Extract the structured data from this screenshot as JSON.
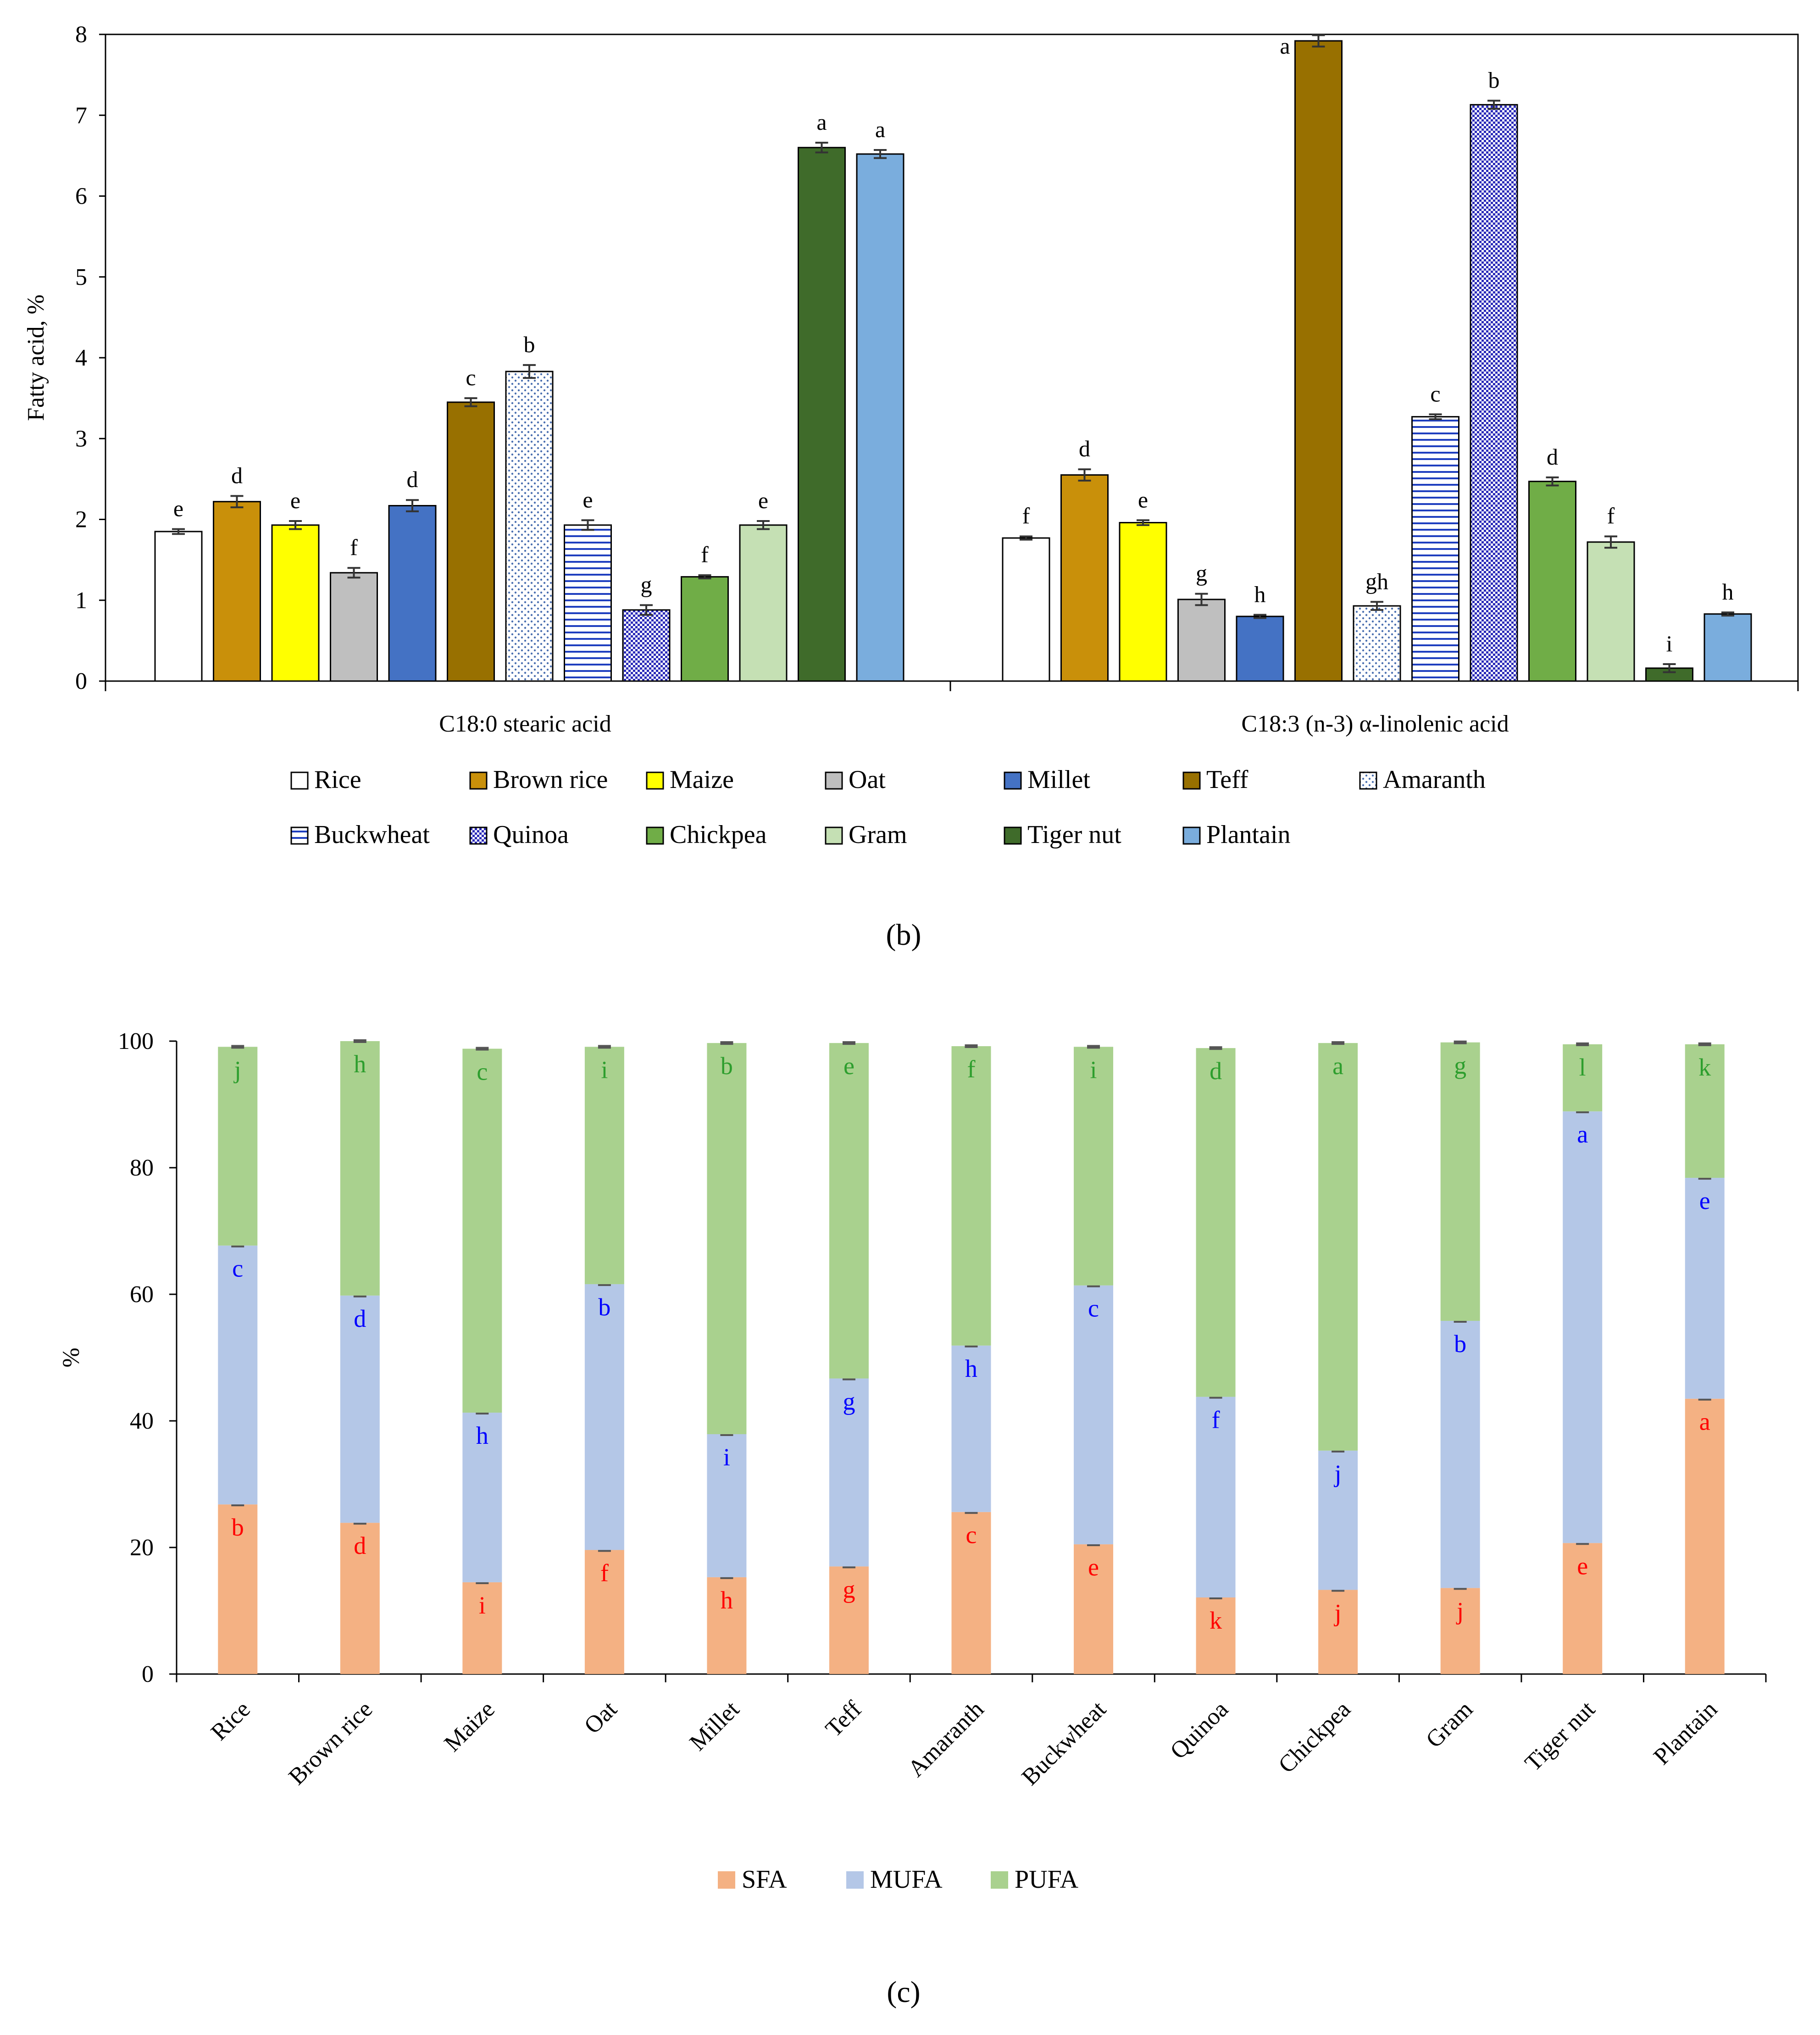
{
  "captions": {
    "b": "(b)",
    "c": "(c)"
  },
  "chart_data": [
    {
      "id": "b",
      "type": "bar",
      "title": "",
      "ylabel": "Fatty acid, %",
      "ylim": [
        0,
        8
      ],
      "yticks": [
        0,
        1,
        2,
        3,
        4,
        5,
        6,
        7,
        8
      ],
      "groups": [
        "C18:0 stearic acid",
        "C18:3 (n-3) α-linolenic acid"
      ],
      "legend_rows": [
        [
          "Rice",
          "Brown rice",
          "Maize",
          "Oat",
          "Millet",
          "Teff",
          "Amaranth"
        ],
        [
          "Buckwheat",
          "Quinoa",
          "Chickpea",
          "Gram",
          "Tiger nut",
          "Plantain"
        ]
      ],
      "series": [
        {
          "name": "Rice",
          "fill": "#ffffff",
          "pattern": "none",
          "values": [
            1.85,
            1.77
          ],
          "errors": [
            0.03,
            0.02
          ],
          "labels": [
            "e",
            "f"
          ]
        },
        {
          "name": "Brown rice",
          "fill": "#c9900a",
          "pattern": "none",
          "values": [
            2.22,
            2.55
          ],
          "errors": [
            0.07,
            0.07
          ],
          "labels": [
            "d",
            "d"
          ]
        },
        {
          "name": "Maize",
          "fill": "#ffff00",
          "pattern": "none",
          "values": [
            1.93,
            1.96
          ],
          "errors": [
            0.05,
            0.03
          ],
          "labels": [
            "e",
            "e"
          ]
        },
        {
          "name": "Oat",
          "fill": "#bfbfbf",
          "pattern": "none",
          "values": [
            1.34,
            1.01
          ],
          "errors": [
            0.06,
            0.07
          ],
          "labels": [
            "f",
            "g"
          ]
        },
        {
          "name": "Millet",
          "fill": "#4472c4",
          "pattern": "none",
          "values": [
            2.17,
            0.8
          ],
          "errors": [
            0.07,
            0.02
          ],
          "labels": [
            "d",
            "h"
          ]
        },
        {
          "name": "Teff",
          "fill": "#987000",
          "pattern": "none",
          "values": [
            3.45,
            7.92
          ],
          "errors": [
            0.05,
            0.07
          ],
          "labels": [
            "c",
            "a"
          ]
        },
        {
          "name": "Amaranth",
          "fill": "#ffffff",
          "pattern": "dots",
          "values": [
            3.83,
            0.93
          ],
          "errors": [
            0.08,
            0.05
          ],
          "labels": [
            "b",
            "gh"
          ]
        },
        {
          "name": "Buckwheat",
          "fill": "#ffffff",
          "pattern": "hlines",
          "values": [
            1.93,
            3.27
          ],
          "errors": [
            0.06,
            0.03
          ],
          "labels": [
            "e",
            "c"
          ]
        },
        {
          "name": "Quinoa",
          "fill": "#3535c8",
          "pattern": "check",
          "values": [
            0.88,
            7.13
          ],
          "errors": [
            0.06,
            0.05
          ],
          "labels": [
            "g",
            "b"
          ]
        },
        {
          "name": "Chickpea",
          "fill": "#70ad47",
          "pattern": "none",
          "values": [
            1.29,
            2.47
          ],
          "errors": [
            0.02,
            0.05
          ],
          "labels": [
            "f",
            "d"
          ]
        },
        {
          "name": "Gram",
          "fill": "#c5e0b4",
          "pattern": "none",
          "values": [
            1.93,
            1.72
          ],
          "errors": [
            0.05,
            0.07
          ],
          "labels": [
            "e",
            "f"
          ]
        },
        {
          "name": "Tiger nut",
          "fill": "#3f6b2a",
          "pattern": "none",
          "values": [
            6.6,
            0.16
          ],
          "errors": [
            0.06,
            0.05
          ],
          "labels": [
            "a",
            "i"
          ]
        },
        {
          "name": "Plantain",
          "fill": "#7aaddd",
          "pattern": "none",
          "values": [
            6.52,
            0.83
          ],
          "errors": [
            0.05,
            0.02
          ],
          "labels": [
            "a",
            "h"
          ]
        }
      ]
    },
    {
      "id": "c",
      "type": "bar",
      "stacked": true,
      "title": "",
      "ylabel": "%",
      "ylim": [
        0,
        100
      ],
      "yticks": [
        0,
        20,
        40,
        60,
        80,
        100
      ],
      "categories": [
        "Rice",
        "Brown rice",
        "Maize",
        "Oat",
        "Millet",
        "Teff",
        "Amaranth",
        "Buckwheat",
        "Quinoa",
        "Chickpea",
        "Gram",
        "Tiger nut",
        "Plantain"
      ],
      "series": [
        {
          "name": "SFA",
          "fill": "#f4b183",
          "label_color": "#ff0000",
          "values": [
            26.8,
            23.9,
            14.5,
            19.6,
            15.3,
            17.0,
            25.6,
            20.5,
            12.1,
            13.3,
            13.6,
            20.7,
            43.5
          ],
          "labels": [
            "b",
            "d",
            "i",
            "f",
            "h",
            "g",
            "c",
            "e",
            "k",
            "j",
            "j",
            "e",
            "a"
          ]
        },
        {
          "name": "MUFA",
          "fill": "#b4c7e7",
          "label_color": "#0000ff",
          "values": [
            40.9,
            35.9,
            26.8,
            42.0,
            22.6,
            29.7,
            26.3,
            40.9,
            31.7,
            22.0,
            42.2,
            68.2,
            34.9
          ],
          "labels": [
            "c",
            "d",
            "h",
            "b",
            "i",
            "g",
            "h",
            "c",
            "f",
            "j",
            "b",
            "a",
            "e"
          ]
        },
        {
          "name": "PUFA",
          "fill": "#a9d18e",
          "label_color": "#2e9e2e",
          "values": [
            31.4,
            40.2,
            57.5,
            37.5,
            61.8,
            53.0,
            47.3,
            37.7,
            55.1,
            64.4,
            44.0,
            10.6,
            21.1
          ],
          "labels": [
            "j",
            "h",
            "c",
            "i",
            "b",
            "e",
            "f",
            "i",
            "d",
            "a",
            "g",
            "l",
            "k"
          ]
        }
      ]
    }
  ]
}
